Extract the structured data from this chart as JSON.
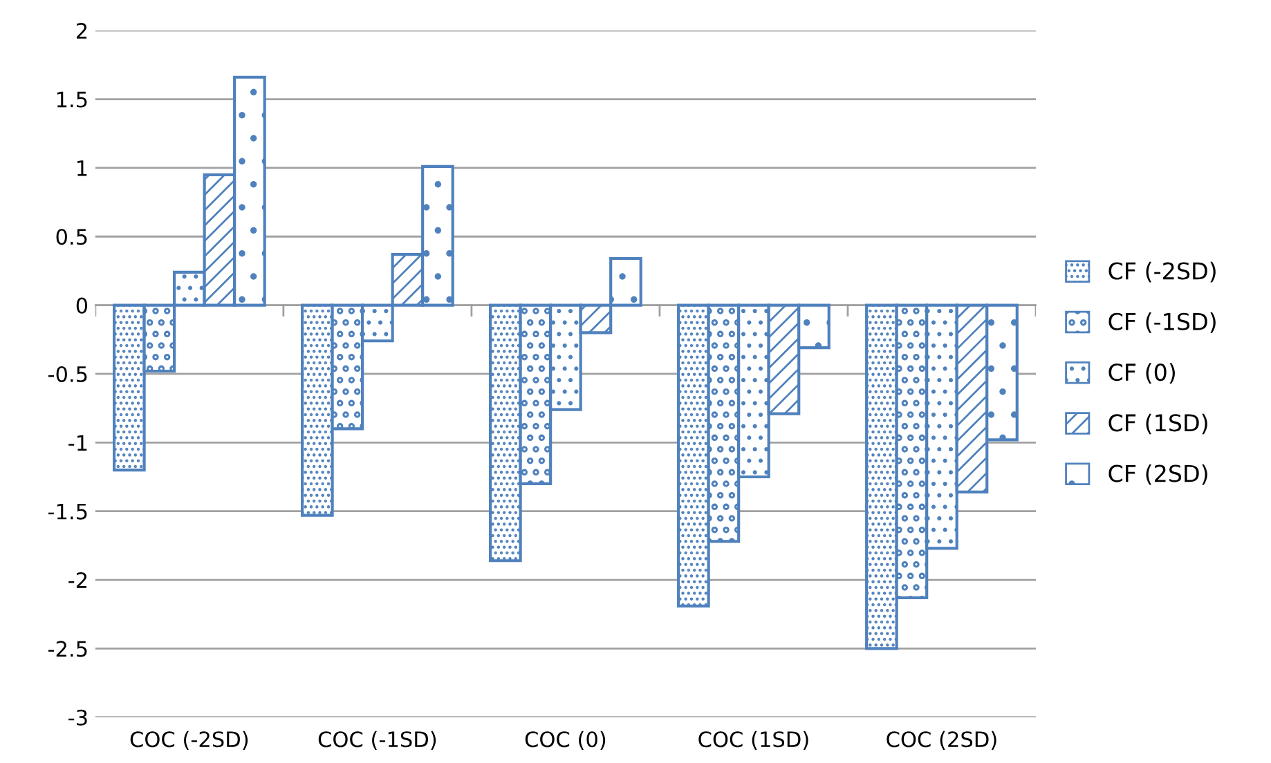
{
  "chart_data": {
    "type": "bar",
    "categories": [
      "COC (-2SD)",
      "COC (-1SD)",
      "COC (0)",
      "COC (1SD)",
      "COC (2SD)"
    ],
    "series": [
      {
        "name": "CF (-2SD)",
        "color": "#4f81bd",
        "values": [
          -1.2,
          -1.53,
          -1.86,
          -2.19,
          -2.5
        ]
      },
      {
        "name": "CF (-1SD)",
        "color": "#4f81bd",
        "values": [
          -0.48,
          -0.9,
          -1.3,
          -1.72,
          -2.13
        ]
      },
      {
        "name": "CF (0)",
        "color": "#4f81bd",
        "values": [
          0.24,
          -0.26,
          -0.76,
          -1.25,
          -1.77
        ]
      },
      {
        "name": "CF (1SD)",
        "color": "#4f81bd",
        "values": [
          0.95,
          0.37,
          -0.2,
          -0.79,
          -1.36
        ]
      },
      {
        "name": "CF (2SD)",
        "color": "#4f81bd",
        "values": [
          1.66,
          1.01,
          0.34,
          -0.31,
          -0.98
        ]
      }
    ],
    "ylim": [
      -3,
      2
    ],
    "yticks": [
      -3,
      -2.5,
      -2,
      -1.5,
      -1,
      -0.5,
      0,
      0.5,
      1,
      1.5,
      2
    ],
    "grid": "y",
    "legend": "right"
  }
}
